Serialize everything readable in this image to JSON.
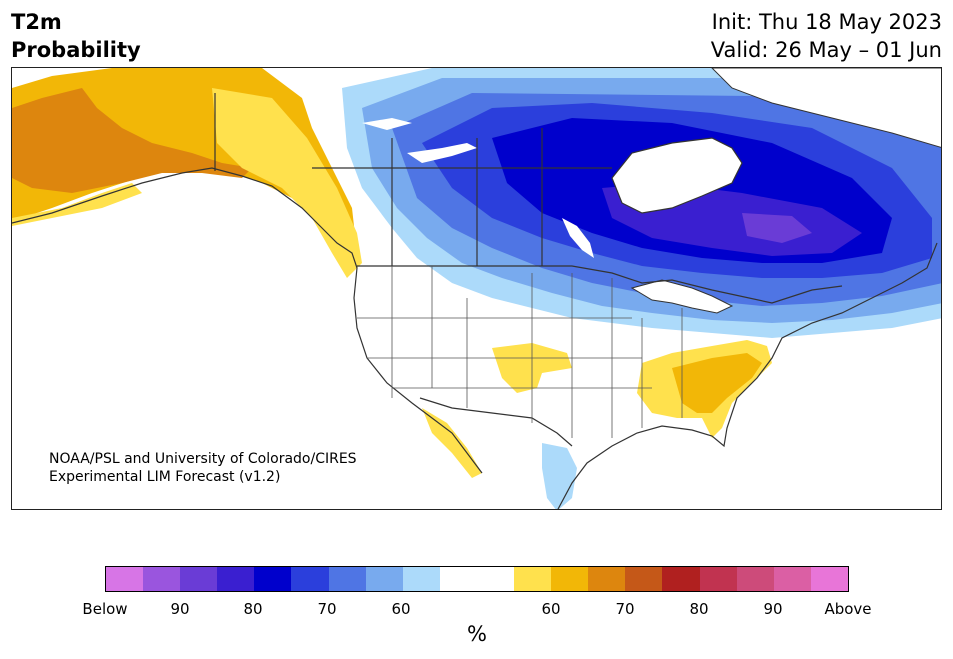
{
  "header": {
    "title_line1": "T2m",
    "title_line2": "Probability",
    "init": "Init: Thu 18 May 2023",
    "valid": "Valid: 26 May – 01 Jun"
  },
  "credit": {
    "line1": "NOAA/PSL and University of Colorado/CIRES",
    "line2": "Experimental LIM Forecast (v1.2)"
  },
  "colorbar": {
    "colors": [
      "#d775e6",
      "#9a55de",
      "#6a3cd6",
      "#3a1fd0",
      "#0000cc",
      "#2b3fdc",
      "#4f75e4",
      "#78aaee",
      "#acdafa",
      "#ffffff",
      "#ffffff",
      "#ffe14d",
      "#f2b707",
      "#dd860e",
      "#c55818",
      "#b0201f",
      "#c13350",
      "#cd4b7a",
      "#db5fa4",
      "#e875d8"
    ],
    "tick_labels": [
      "Below",
      "90",
      "80",
      "70",
      "60",
      "60",
      "70",
      "80",
      "90",
      "Above"
    ],
    "unit": "%"
  },
  "map_colors": {
    "land_neutral": "#ffffff",
    "ocean": "#ffffff",
    "warm_60": "#ffe14d",
    "warm_70": "#f2b707",
    "warm_80": "#dd860e",
    "cool_60": "#acdafa",
    "cool_70": "#78aaee",
    "cool_80": "#4f75e4",
    "cool_85": "#2b3fdc",
    "cool_90": "#0000cc",
    "cool_93": "#3a1fd0",
    "cool_96": "#6a3cd6",
    "border": "#333333"
  }
}
